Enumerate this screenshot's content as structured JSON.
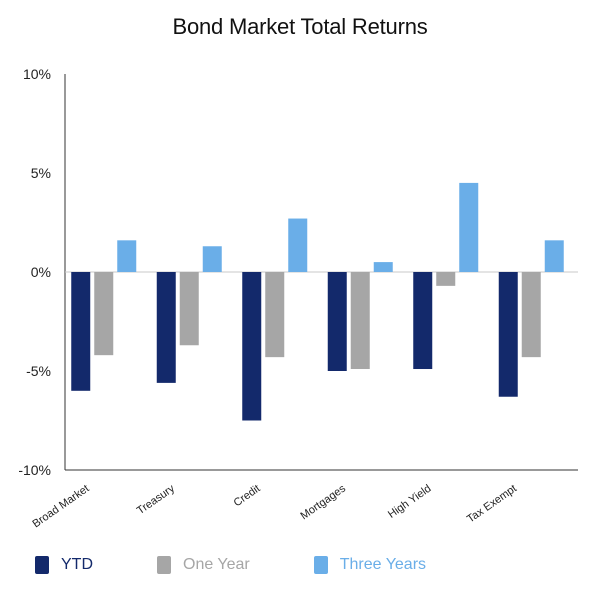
{
  "chart_data": {
    "type": "bar",
    "title": "Bond Market Total Returns",
    "xlabel": "",
    "ylabel": "",
    "categories": [
      "Broad Market",
      "Treasury",
      "Credit",
      "Mortgages",
      "High Yield",
      "Tax Exempt"
    ],
    "series": [
      {
        "name": "YTD",
        "color": "#13296b",
        "values": [
          -6.0,
          -5.6,
          -7.5,
          -5.0,
          -4.9,
          -6.3
        ]
      },
      {
        "name": "One Year",
        "color": "#a6a6a6",
        "values": [
          -4.2,
          -3.7,
          -4.3,
          -4.9,
          -0.7,
          -4.3
        ]
      },
      {
        "name": "Three Years",
        "color": "#6aaee8",
        "values": [
          1.6,
          1.3,
          2.7,
          0.5,
          4.5,
          1.6
        ]
      }
    ],
    "ylim": [
      -10,
      10
    ],
    "yticks": [
      "10%",
      "5%",
      "0%",
      "-5%",
      "-10%"
    ],
    "ytick_values": [
      10,
      5,
      0,
      -5,
      -10
    ],
    "grid": false,
    "legend_position": "bottom-left"
  }
}
